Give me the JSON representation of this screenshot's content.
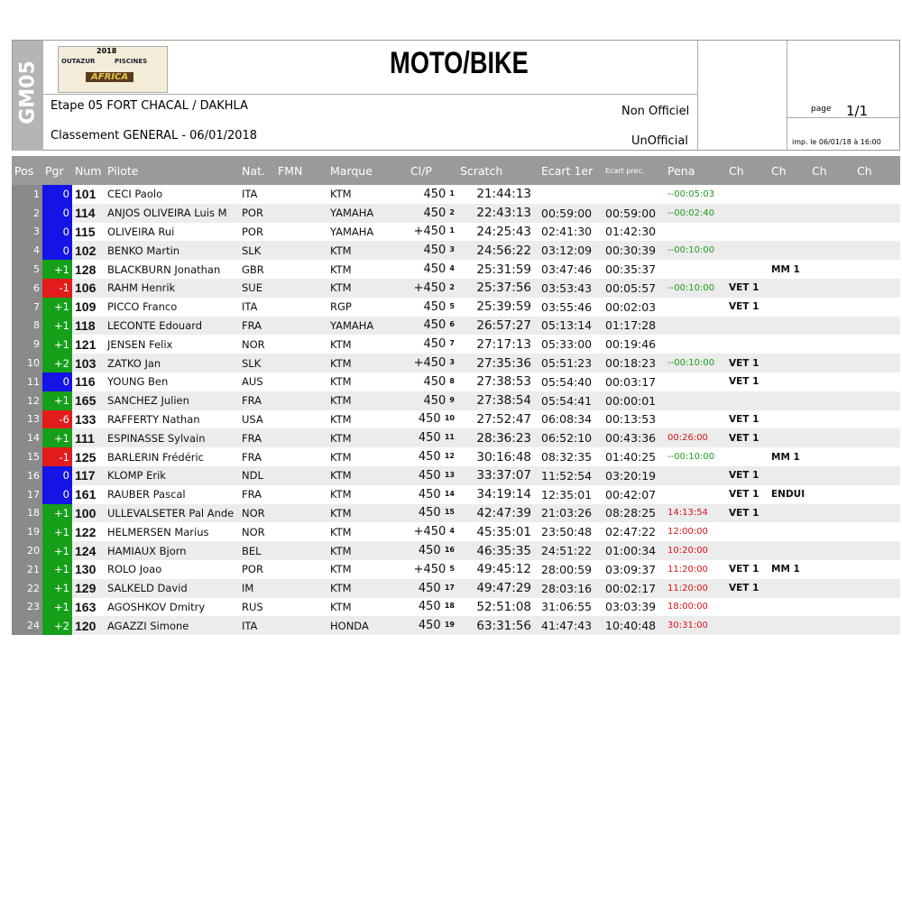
{
  "header": {
    "side_label": "GM05",
    "logo": {
      "year": "2018",
      "sponsor_left": "OUTAZUR",
      "sponsor_right": "PISCINES",
      "event": "AFRICA"
    },
    "title": "MOTO/BIKE",
    "stage": "Etape 05 FORT CHACAL / DAKHLA",
    "classification": "Classement GENERAL - 06/01/2018",
    "status_fr": "Non Officiel",
    "status_en": "UnOfficial",
    "page_label": "page",
    "page_number": "1/1",
    "printed": "imp. le 06/01/18 à 16:00"
  },
  "table": {
    "columns": [
      "Pos",
      "Pgr",
      "Num",
      "Pilote",
      "Nat.",
      "FMN",
      "Marque",
      "Cl/P",
      "Scratch",
      "Ecart 1er",
      "Ecart prec.",
      "Pena",
      "Ch",
      "Ch",
      "Ch",
      "Ch"
    ],
    "rows": [
      {
        "pos": 1,
        "pgr": "0",
        "num": 101,
        "pilote": "CECI Paolo",
        "nat": "ITA",
        "marque": "KTM",
        "clp": "450",
        "rank": 1,
        "scratch": "21:44:13",
        "pena": "--00:05:03"
      },
      {
        "pos": 2,
        "pgr": "0",
        "num": 114,
        "pilote": "ANJOS OLIVEIRA Luis M",
        "nat": "POR",
        "marque": "YAMAHA",
        "clp": "450",
        "rank": 2,
        "scratch": "22:43:13",
        "ecart1": "00:59:00",
        "ecartprec": "00:59:00",
        "pena": "--00:02:40"
      },
      {
        "pos": 3,
        "pgr": "0",
        "num": 115,
        "pilote": "OLIVEIRA Rui",
        "nat": "POR",
        "marque": "YAMAHA",
        "clp": "+450",
        "rank": 1,
        "scratch": "24:25:43",
        "ecart1": "02:41:30",
        "ecartprec": "01:42:30"
      },
      {
        "pos": 4,
        "pgr": "0",
        "num": 102,
        "pilote": "BENKO Martin",
        "nat": "SLK",
        "marque": "KTM",
        "clp": "450",
        "rank": 3,
        "scratch": "24:56:22",
        "ecart1": "03:12:09",
        "ecartprec": "00:30:39",
        "pena": "--00:10:00"
      },
      {
        "pos": 5,
        "pgr": "+1",
        "num": 128,
        "pilote": "BLACKBURN Jonathan",
        "nat": "GBR",
        "marque": "KTM",
        "clp": "450",
        "rank": 4,
        "scratch": "25:31:59",
        "ecart1": "03:47:46",
        "ecartprec": "00:35:37",
        "ch2": "MM 1"
      },
      {
        "pos": 6,
        "pgr": "-1",
        "num": 106,
        "pilote": "RAHM Henrik",
        "nat": "SUE",
        "marque": "KTM",
        "clp": "+450",
        "rank": 2,
        "scratch": "25:37:56",
        "ecart1": "03:53:43",
        "ecartprec": "00:05:57",
        "pena": "--00:10:00",
        "ch1": "VET 1"
      },
      {
        "pos": 7,
        "pgr": "+1",
        "num": 109,
        "pilote": "PICCO Franco",
        "nat": "ITA",
        "marque": "RGP",
        "clp": "450",
        "rank": 5,
        "scratch": "25:39:59",
        "ecart1": "03:55:46",
        "ecartprec": "00:02:03",
        "ch1": "VET 1"
      },
      {
        "pos": 8,
        "pgr": "+1",
        "num": 118,
        "pilote": "LECONTE Edouard",
        "nat": "FRA",
        "marque": "YAMAHA",
        "clp": "450",
        "rank": 6,
        "scratch": "26:57:27",
        "ecart1": "05:13:14",
        "ecartprec": "01:17:28"
      },
      {
        "pos": 9,
        "pgr": "+1",
        "num": 121,
        "pilote": "JENSEN Felix",
        "nat": "NOR",
        "marque": "KTM",
        "clp": "450",
        "rank": 7,
        "scratch": "27:17:13",
        "ecart1": "05:33:00",
        "ecartprec": "00:19:46"
      },
      {
        "pos": 10,
        "pgr": "+2",
        "num": 103,
        "pilote": "ZATKO Jan",
        "nat": "SLK",
        "marque": "KTM",
        "clp": "+450",
        "rank": 3,
        "scratch": "27:35:36",
        "ecart1": "05:51:23",
        "ecartprec": "00:18:23",
        "pena": "--00:10:00",
        "ch1": "VET 1"
      },
      {
        "pos": 11,
        "pgr": "0",
        "num": 116,
        "pilote": "YOUNG Ben",
        "nat": "AUS",
        "marque": "KTM",
        "clp": "450",
        "rank": 8,
        "scratch": "27:38:53",
        "ecart1": "05:54:40",
        "ecartprec": "00:03:17",
        "ch1": "VET 1"
      },
      {
        "pos": 12,
        "pgr": "+1",
        "num": 165,
        "pilote": "SANCHEZ Julien",
        "nat": "FRA",
        "marque": "KTM",
        "clp": "450",
        "rank": 9,
        "scratch": "27:38:54",
        "ecart1": "05:54:41",
        "ecartprec": "00:00:01"
      },
      {
        "pos": 13,
        "pgr": "-6",
        "num": 133,
        "pilote": "RAFFERTY Nathan",
        "nat": "USA",
        "marque": "KTM",
        "clp": "450",
        "rank": 10,
        "scratch": "27:52:47",
        "ecart1": "06:08:34",
        "ecartprec": "00:13:53",
        "ch1": "VET 1"
      },
      {
        "pos": 14,
        "pgr": "+1",
        "num": 111,
        "pilote": "ESPINASSE Sylvain",
        "nat": "FRA",
        "marque": "KTM",
        "clp": "450",
        "rank": 11,
        "scratch": "28:36:23",
        "ecart1": "06:52:10",
        "ecartprec": "00:43:36",
        "pena": "00:26:00",
        "ch1": "VET 1"
      },
      {
        "pos": 15,
        "pgr": "-1",
        "num": 125,
        "pilote": "BARLERIN Frédéric",
        "nat": "FRA",
        "marque": "KTM",
        "clp": "450",
        "rank": 12,
        "scratch": "30:16:48",
        "ecart1": "08:32:35",
        "ecartprec": "01:40:25",
        "pena": "--00:10:00",
        "ch2": "MM 1"
      },
      {
        "pos": 16,
        "pgr": "0",
        "num": 117,
        "pilote": "KLOMP Erik",
        "nat": "NDL",
        "marque": "KTM",
        "clp": "450",
        "rank": 13,
        "scratch": "33:37:07",
        "ecart1": "11:52:54",
        "ecartprec": "03:20:19",
        "ch1": "VET 1"
      },
      {
        "pos": 17,
        "pgr": "0",
        "num": 161,
        "pilote": "RAUBER Pascal",
        "nat": "FRA",
        "marque": "KTM",
        "clp": "450",
        "rank": 14,
        "scratch": "34:19:14",
        "ecart1": "12:35:01",
        "ecartprec": "00:42:07",
        "ch1": "VET 1",
        "ch2": "ENDUI"
      },
      {
        "pos": 18,
        "pgr": "+1",
        "num": 100,
        "pilote": "ULLEVALSETER Pal Ande",
        "nat": "NOR",
        "marque": "KTM",
        "clp": "450",
        "rank": 15,
        "scratch": "42:47:39",
        "ecart1": "21:03:26",
        "ecartprec": "08:28:25",
        "pena": "14:13:54",
        "ch1": "VET 1"
      },
      {
        "pos": 19,
        "pgr": "+1",
        "num": 122,
        "pilote": "HELMERSEN Marius",
        "nat": "NOR",
        "marque": "KTM",
        "clp": "+450",
        "rank": 4,
        "scratch": "45:35:01",
        "ecart1": "23:50:48",
        "ecartprec": "02:47:22",
        "pena": "12:00:00"
      },
      {
        "pos": 20,
        "pgr": "+1",
        "num": 124,
        "pilote": "HAMIAUX Bjorn",
        "nat": "BEL",
        "marque": "KTM",
        "clp": "450",
        "rank": 16,
        "scratch": "46:35:35",
        "ecart1": "24:51:22",
        "ecartprec": "01:00:34",
        "pena": "10:20:00"
      },
      {
        "pos": 21,
        "pgr": "+1",
        "num": 130,
        "pilote": "ROLO Joao",
        "nat": "POR",
        "marque": "KTM",
        "clp": "+450",
        "rank": 5,
        "scratch": "49:45:12",
        "ecart1": "28:00:59",
        "ecartprec": "03:09:37",
        "pena": "11:20:00",
        "ch1": "VET 1",
        "ch2": "MM 1"
      },
      {
        "pos": 22,
        "pgr": "+1",
        "num": 129,
        "pilote": "SALKELD David",
        "nat": "IM",
        "marque": "KTM",
        "clp": "450",
        "rank": 17,
        "scratch": "49:47:29",
        "ecart1": "28:03:16",
        "ecartprec": "00:02:17",
        "pena": "11:20:00",
        "ch1": "VET 1"
      },
      {
        "pos": 23,
        "pgr": "+1",
        "num": 163,
        "pilote": "AGOSHKOV Dmitry",
        "nat": "RUS",
        "marque": "KTM",
        "clp": "450",
        "rank": 18,
        "scratch": "52:51:08",
        "ecart1": "31:06:55",
        "ecartprec": "03:03:39",
        "pena": "18:00:00"
      },
      {
        "pos": 24,
        "pgr": "+2",
        "num": 120,
        "pilote": "AGAZZI Simone",
        "nat": "ITA",
        "marque": "HONDA",
        "clp": "450",
        "rank": 19,
        "scratch": "63:31:56",
        "ecart1": "41:47:43",
        "ecartprec": "10:40:48",
        "pena": "30:31:00"
      }
    ]
  }
}
